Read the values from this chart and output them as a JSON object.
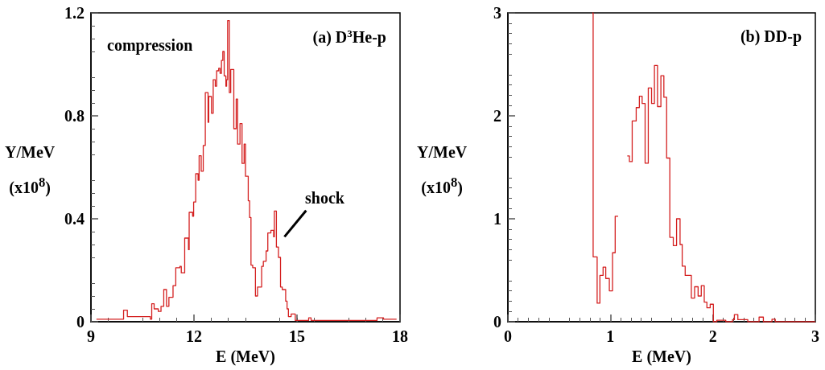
{
  "chart_data": [
    {
      "type": "step",
      "title": "(a) D$^{3}$He-p",
      "xlabel": "E (MeV)",
      "ylabel": "Y/MeV\n(x10$^{8}$)",
      "x": [
        9.16,
        9.95,
        10.06,
        10.73,
        10.77,
        10.84,
        10.96,
        11.04,
        11.12,
        11.2,
        11.27,
        11.39,
        11.47,
        11.59,
        11.63,
        11.73,
        11.84,
        11.86,
        11.96,
        11.99,
        12.05,
        12.12,
        12.15,
        12.21,
        12.27,
        12.33,
        12.41,
        12.43,
        12.51,
        12.56,
        12.62,
        12.66,
        12.72,
        12.76,
        12.8,
        12.84,
        12.88,
        12.93,
        12.95,
        12.98,
        13.03,
        13.07,
        13.16,
        13.23,
        13.27,
        13.34,
        13.4,
        13.46,
        13.5,
        13.58,
        13.62,
        13.66,
        13.71,
        13.79,
        13.85,
        13.97,
        14.02,
        14.1,
        14.15,
        14.24,
        14.32,
        14.34,
        14.4,
        14.46,
        14.52,
        14.57,
        14.67,
        14.71,
        14.75,
        14.83,
        14.95,
        15.34,
        15.41,
        17.33,
        17.52,
        17.9
      ],
      "values": [
        0.01,
        0.045,
        0.02,
        0.01,
        0.07,
        0.05,
        0.04,
        0.06,
        0.125,
        0.06,
        0.095,
        0.14,
        0.21,
        0.215,
        0.19,
        0.325,
        0.28,
        0.425,
        0.41,
        0.465,
        0.575,
        0.55,
        0.645,
        0.585,
        0.685,
        0.89,
        0.775,
        0.875,
        0.81,
        0.94,
        0.915,
        0.975,
        0.985,
        0.965,
        1.015,
        1.05,
        0.955,
        0.915,
        0.94,
        1.17,
        0.89,
        0.98,
        0.75,
        0.865,
        0.69,
        0.77,
        0.615,
        0.69,
        0.565,
        0.47,
        0.405,
        0.22,
        0.21,
        0.1,
        0.135,
        0.215,
        0.235,
        0.275,
        0.345,
        0.355,
        0.33,
        0.43,
        0.29,
        0.25,
        0.135,
        0.125,
        0.08,
        0.05,
        0.02,
        0.03,
        0.005,
        0.015,
        0.005,
        0.015,
        0.01,
        0.01
      ],
      "color": "#d42020",
      "xlim": [
        9,
        18
      ],
      "xticks": [
        9,
        12,
        15,
        18
      ],
      "ylim": [
        0,
        1.2
      ],
      "yticks": [
        0,
        0.4,
        0.8,
        1.2
      ],
      "marker": "none",
      "annotations": [
        "compression",
        {
          "text": "shock",
          "x": 14.5,
          "y": 0.33
        }
      ]
    },
    {
      "type": "step",
      "title": "(b) DD-p",
      "xlabel": "E (MeV)",
      "ylabel": "Y/MeV\n(x10$^{8}$)",
      "x": [
        0.824,
        0.832,
        0.871,
        0.898,
        0.929,
        0.955,
        0.99,
        1.021,
        1.047,
        1.076,
        1.08,
        1.165,
        1.186,
        1.213,
        1.252,
        1.283,
        1.31,
        1.339,
        1.37,
        1.402,
        1.43,
        1.46,
        1.493,
        1.522,
        1.549,
        1.58,
        1.614,
        1.646,
        1.68,
        1.701,
        1.73,
        1.79,
        1.822,
        1.856,
        1.887,
        1.916,
        1.942,
        1.974,
        2.005,
        2.039,
        2.126,
        2.192,
        2.21,
        2.244,
        2.276,
        2.341,
        2.451,
        2.493,
        2.577,
        2.609,
        3
      ],
      "values": [
        3,
        0.63,
        0.18,
        0.45,
        0.53,
        0.42,
        0.3,
        0.67,
        1.025,
        1.025,
        null,
        1.61,
        1.555,
        1.95,
        2.08,
        2.19,
        2.12,
        1.54,
        2.27,
        2.12,
        2.49,
        2.09,
        2.39,
        2.18,
        1.59,
        0.82,
        0.74,
        1.0,
        0.75,
        0.54,
        0.45,
        0.23,
        0.34,
        0.25,
        0.35,
        0.19,
        0.135,
        0.17,
        0,
        0.015,
        0,
        0.02,
        0.07,
        0.02,
        0.02,
        0,
        0.045,
        0,
        0.025,
        0,
        0
      ],
      "color": "#d42020",
      "xlim": [
        0,
        3
      ],
      "xticks": [
        0,
        1,
        2,
        3
      ],
      "ylim": [
        0,
        3
      ],
      "yticks": [
        0,
        1,
        2,
        3
      ],
      "marker": "none"
    }
  ]
}
